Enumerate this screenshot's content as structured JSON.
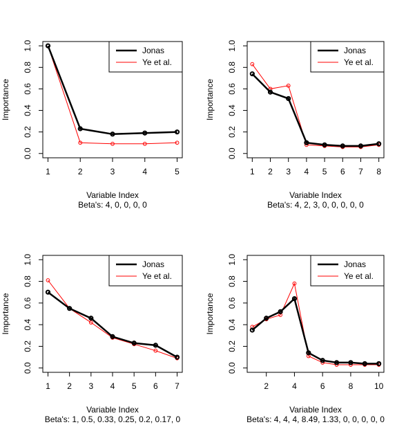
{
  "chart_data": [
    {
      "type": "line",
      "ylabel": "Importance",
      "xlabel": "Variable Index",
      "subtitle": "Beta's:  4, 0, 0, 0, 0",
      "x": [
        1,
        2,
        3,
        4,
        5
      ],
      "xticks": [
        1,
        2,
        3,
        4,
        5
      ],
      "xlim": [
        1,
        5
      ],
      "ylim": [
        0,
        1
      ],
      "yticks": [
        "0.0",
        "0.2",
        "0.4",
        "0.6",
        "0.8",
        "1.0"
      ],
      "legend_position": "top-right",
      "series": [
        {
          "name": "Jonas",
          "color": "#000000",
          "values": [
            1.0,
            0.23,
            0.18,
            0.19,
            0.2
          ]
        },
        {
          "name": "Ye et al.",
          "color": "#ff0000",
          "values": [
            1.0,
            0.1,
            0.09,
            0.09,
            0.1
          ]
        }
      ]
    },
    {
      "type": "line",
      "ylabel": "Importance",
      "xlabel": "Variable Index",
      "subtitle": "Beta's:  4, 2, 3, 0, 0, 0, 0, 0",
      "x": [
        1,
        2,
        3,
        4,
        5,
        6,
        7,
        8
      ],
      "xticks": [
        1,
        2,
        3,
        4,
        5,
        6,
        7,
        8
      ],
      "xlim": [
        1,
        8
      ],
      "ylim": [
        0,
        1
      ],
      "yticks": [
        "0.0",
        "0.2",
        "0.4",
        "0.6",
        "0.8",
        "1.0"
      ],
      "legend_position": "top-right",
      "series": [
        {
          "name": "Jonas",
          "color": "#000000",
          "values": [
            0.74,
            0.57,
            0.51,
            0.1,
            0.08,
            0.07,
            0.07,
            0.09
          ]
        },
        {
          "name": "Ye et al.",
          "color": "#ff0000",
          "values": [
            0.83,
            0.6,
            0.63,
            0.08,
            0.07,
            0.06,
            0.06,
            0.08
          ]
        }
      ]
    },
    {
      "type": "line",
      "ylabel": "Importance",
      "xlabel": "Variable Index",
      "subtitle": "Beta's:  1, 0.5, 0.33, 0.25, 0.2, 0.17, 0",
      "x": [
        1,
        2,
        3,
        4,
        5,
        6,
        7
      ],
      "xticks": [
        1,
        2,
        3,
        4,
        5,
        6,
        7
      ],
      "xlim": [
        1,
        7
      ],
      "ylim": [
        0,
        1
      ],
      "yticks": [
        "0.0",
        "0.2",
        "0.4",
        "0.6",
        "0.8",
        "1.0"
      ],
      "legend_position": "top-right",
      "series": [
        {
          "name": "Jonas",
          "color": "#000000",
          "values": [
            0.7,
            0.55,
            0.46,
            0.29,
            0.23,
            0.21,
            0.1
          ]
        },
        {
          "name": "Ye et al.",
          "color": "#ff0000",
          "values": [
            0.81,
            0.55,
            0.42,
            0.28,
            0.22,
            0.16,
            0.09
          ]
        }
      ]
    },
    {
      "type": "line",
      "ylabel": "Importance",
      "xlabel": "Variable Index",
      "subtitle": "Beta's:  4, 4, 4, 8.49, 1.33, 0, 0, 0, 0, 0",
      "x": [
        1,
        2,
        3,
        4,
        5,
        6,
        7,
        8,
        9,
        10
      ],
      "xticks": [
        2,
        4,
        6,
        8,
        10
      ],
      "xlim": [
        1,
        10
      ],
      "ylim": [
        0,
        1
      ],
      "yticks": [
        "0.0",
        "0.2",
        "0.4",
        "0.6",
        "0.8",
        "1.0"
      ],
      "legend_position": "top-right",
      "series": [
        {
          "name": "Jonas",
          "color": "#000000",
          "values": [
            0.35,
            0.46,
            0.52,
            0.64,
            0.14,
            0.07,
            0.05,
            0.05,
            0.04,
            0.04
          ]
        },
        {
          "name": "Ye et al.",
          "color": "#ff0000",
          "values": [
            0.38,
            0.45,
            0.49,
            0.78,
            0.11,
            0.05,
            0.03,
            0.03,
            0.03,
            0.03
          ]
        }
      ]
    }
  ]
}
